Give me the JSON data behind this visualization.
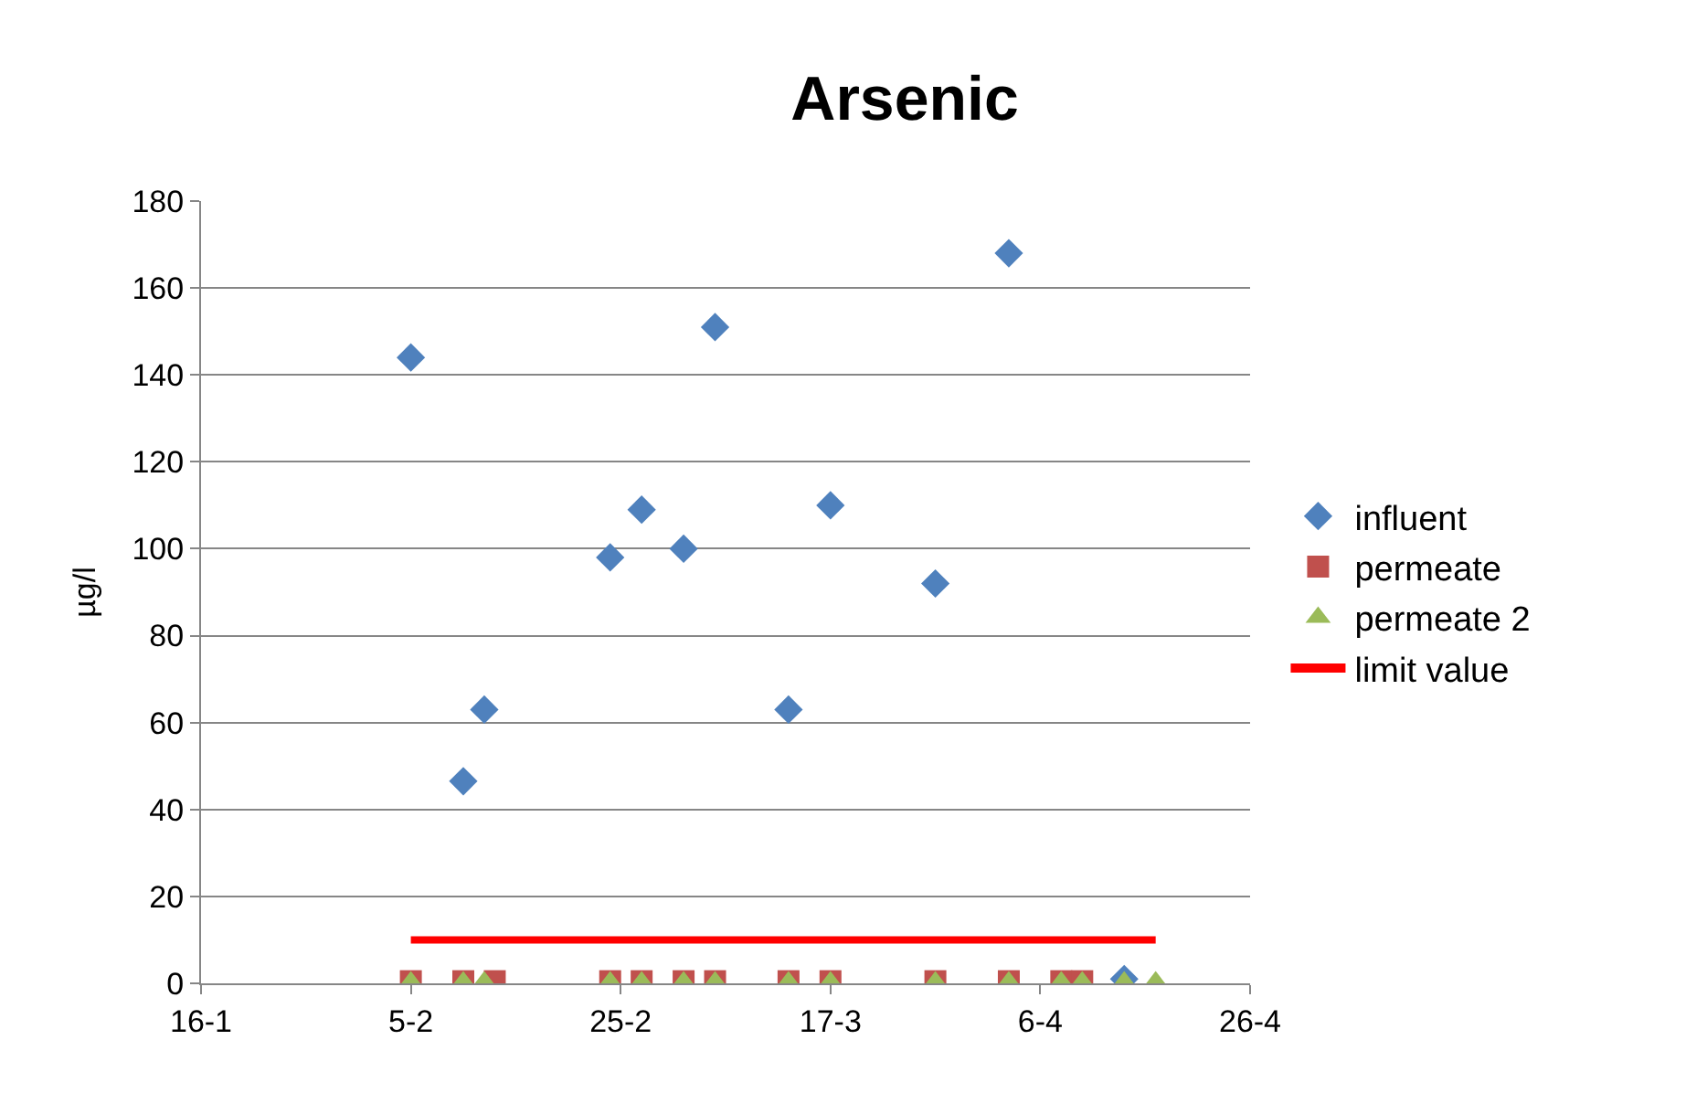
{
  "chart_data": {
    "type": "scatter",
    "title": "Arsenic",
    "ylabel": "µg/l",
    "xlim": [
      "--01-16",
      "--04-26"
    ],
    "xticks": [
      {
        "value": "--01-16",
        "label": "16-1"
      },
      {
        "value": "--02-05",
        "label": "5-2"
      },
      {
        "value": "--02-25",
        "label": "25-2"
      },
      {
        "value": "--03-17",
        "label": "17-3"
      },
      {
        "value": "--04-06",
        "label": "6-4"
      },
      {
        "value": "--04-26",
        "label": "26-4"
      }
    ],
    "ylim": [
      0,
      180
    ],
    "yticks": [
      0,
      20,
      40,
      60,
      80,
      100,
      120,
      140,
      160,
      180
    ],
    "grid": "y",
    "legend": "right",
    "series": [
      {
        "name": "influent",
        "color": "#4f81bd",
        "marker": "diamond",
        "x": [
          "--02-05",
          "--02-10",
          "--02-12",
          "--02-24",
          "--02-27",
          "--03-03",
          "--03-06",
          "--03-13",
          "--03-17",
          "--03-27",
          "--04-03",
          "--04-10",
          "--04-14"
        ],
        "values": [
          144,
          46.5,
          63,
          98,
          109,
          100,
          151,
          63,
          110,
          92,
          168,
          null,
          1
        ]
      },
      {
        "name": "permeate",
        "color": "#c0504d",
        "marker": "square",
        "x": [
          "--02-05",
          "--02-10",
          "--02-13",
          "--02-24",
          "--02-27",
          "--03-03",
          "--03-06",
          "--03-13",
          "--03-17",
          "--03-27",
          "--04-03",
          "--04-08",
          "--04-10"
        ],
        "values": [
          0.5,
          0.5,
          0.5,
          0.5,
          0.5,
          0.5,
          0.5,
          0.5,
          0.5,
          0.5,
          0.5,
          0.5,
          0.5
        ]
      },
      {
        "name": "permeate 2",
        "color": "#9bbb59",
        "marker": "triangle",
        "x": [
          "--02-05",
          "--02-10",
          "--02-12",
          "--02-24",
          "--02-27",
          "--03-03",
          "--03-06",
          "--03-13",
          "--03-17",
          "--03-27",
          "--04-03",
          "--04-08",
          "--04-10",
          "--04-14",
          "--04-17"
        ],
        "values": [
          0.3,
          0.3,
          0.3,
          0.3,
          0.3,
          0.3,
          0.3,
          0.3,
          0.3,
          0.3,
          0.3,
          0.3,
          0.3,
          0.3,
          0.3
        ]
      },
      {
        "name": "limit value",
        "type": "line",
        "color": "#ff0000",
        "marker": "none",
        "line_style": "solid",
        "x": [
          "--02-05",
          "--04-17"
        ],
        "values": [
          10,
          10
        ]
      }
    ]
  }
}
